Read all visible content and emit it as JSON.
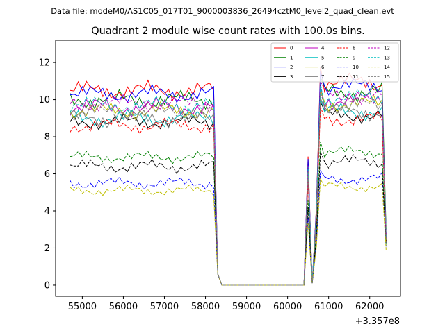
{
  "chart_data": {
    "type": "line",
    "suptitle": "Data file: modeM0/AS1C05_017T01_9000003836_26494cztM0_level2_quad_clean.evt",
    "title": "Quadrant 2 module wise count rates with 100.0s bins.",
    "xlabel": "",
    "ylabel": "",
    "x_offset_label": "+3.357e8",
    "xlim": [
      54350,
      62750
    ],
    "ylim": [
      -0.6,
      13.2
    ],
    "xticks": [
      55000,
      56000,
      57000,
      58000,
      59000,
      60000,
      61000,
      62000
    ],
    "xtick_labels": [
      "55000",
      "56000",
      "57000",
      "58000",
      "59000",
      "60000",
      "61000",
      "62000"
    ],
    "yticks": [
      0,
      2,
      4,
      6,
      8,
      10,
      12
    ],
    "ytick_labels": [
      "0",
      "2",
      "4",
      "6",
      "8",
      "10",
      "12"
    ],
    "segments": {
      "first": {
        "start": 54700,
        "end": 58200,
        "step": 100
      },
      "second": {
        "start": 60700,
        "end": 62400,
        "step": 100
      }
    },
    "drop_points": [
      [
        58300,
        0.6
      ],
      [
        58400,
        0
      ],
      [
        60400,
        0
      ],
      [
        60500,
        6.6
      ],
      [
        60600,
        0.1
      ]
    ],
    "legend_position": "upper right",
    "series": [
      {
        "name": "0",
        "color": "#ff0000",
        "style": "solid",
        "base": 10.5,
        "amp": 0.55,
        "end": 2.6
      },
      {
        "name": "1",
        "color": "#008000",
        "style": "solid",
        "base": 10.0,
        "amp": 0.55,
        "end": 3.0
      },
      {
        "name": "2",
        "color": "#0000ff",
        "style": "solid",
        "base": 10.3,
        "amp": 0.5,
        "end": 2.7
      },
      {
        "name": "3",
        "color": "#000000",
        "style": "solid",
        "base": 8.8,
        "amp": 0.45,
        "end": 2.5
      },
      {
        "name": "4",
        "color": "#bf00bf",
        "style": "solid",
        "base": 9.6,
        "amp": 0.55,
        "end": 2.4
      },
      {
        "name": "5",
        "color": "#00bfbf",
        "style": "solid",
        "base": 9.0,
        "amp": 0.5,
        "end": 2.5
      },
      {
        "name": "6",
        "color": "#bfbf00",
        "style": "solid",
        "base": 9.4,
        "amp": 0.5,
        "end": 2.4
      },
      {
        "name": "7",
        "color": "#808080",
        "style": "solid",
        "base": 9.0,
        "amp": 0.55,
        "end": 2.6
      },
      {
        "name": "8",
        "color": "#ff0000",
        "style": "dashed",
        "base": 8.6,
        "amp": 0.45,
        "end": 2.4
      },
      {
        "name": "9",
        "color": "#008000",
        "style": "dashed",
        "base": 6.9,
        "amp": 0.35,
        "end": 2.1
      },
      {
        "name": "10",
        "color": "#0000ff",
        "style": "dashed",
        "base": 5.5,
        "amp": 0.35,
        "end": 2.0
      },
      {
        "name": "11",
        "color": "#000000",
        "style": "dashed",
        "base": 6.4,
        "amp": 0.4,
        "end": 2.2
      },
      {
        "name": "12",
        "color": "#bf00bf",
        "style": "dashed",
        "base": 9.8,
        "amp": 0.5,
        "end": 2.5
      },
      {
        "name": "13",
        "color": "#00bfbf",
        "style": "dashed",
        "base": 9.7,
        "amp": 0.5,
        "end": 2.6
      },
      {
        "name": "14",
        "color": "#bfbf00",
        "style": "dashed",
        "base": 5.1,
        "amp": 0.3,
        "end": 1.9
      },
      {
        "name": "15",
        "color": "#808080",
        "style": "dashed",
        "base": 9.3,
        "amp": 0.5,
        "end": 2.5
      }
    ]
  }
}
